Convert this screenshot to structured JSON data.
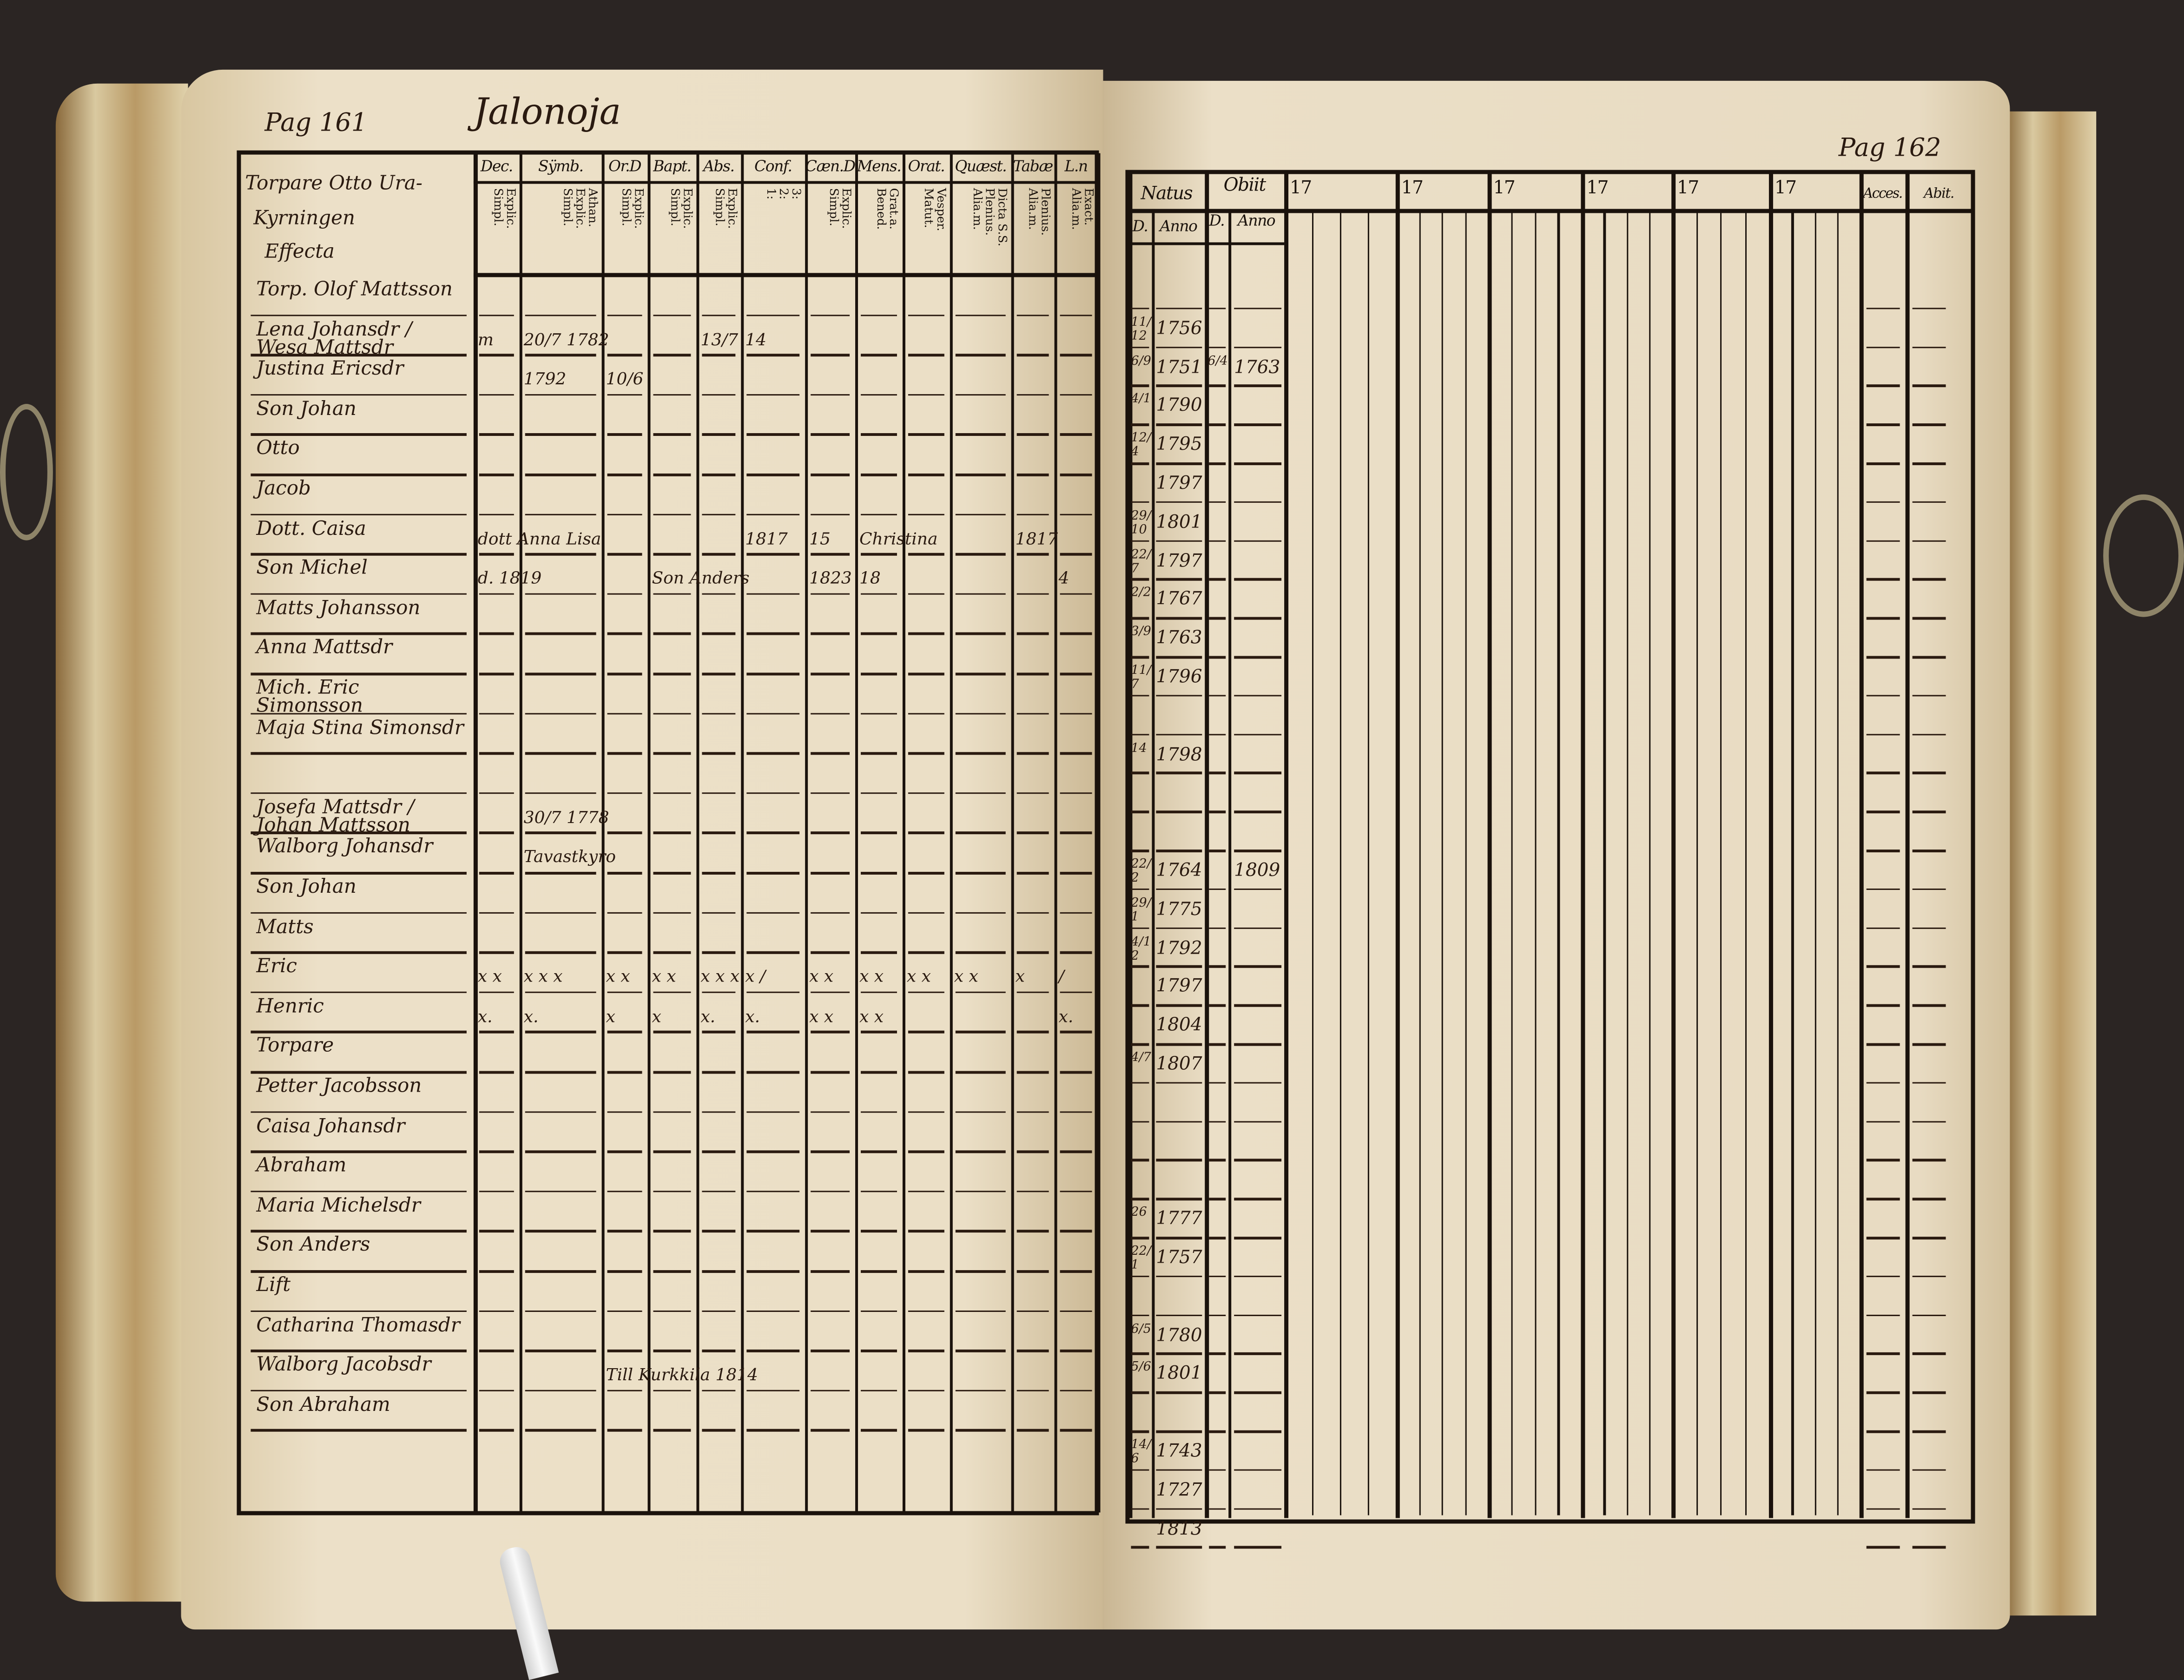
{
  "left_page": {
    "page_number": "Pag 161",
    "village": "Jalonoja",
    "heading_lines": [
      "Torpare Otto Ura-",
      "Kyrningen",
      "Effecta"
    ],
    "columns": [
      {
        "label": "Dec.",
        "sub": [
          "Explic.",
          "Simpl."
        ]
      },
      {
        "label": "Sÿmb.",
        "sub": [
          "Athan.",
          "Explic.",
          "Simpl."
        ]
      },
      {
        "label": "Or.D",
        "sub": [
          "Explic.",
          "Simpl."
        ]
      },
      {
        "label": "Bapt.",
        "sub": [
          "Explic.",
          "Simpl."
        ]
      },
      {
        "label": "Abs.",
        "sub": [
          "Explic.",
          "Simpl."
        ]
      },
      {
        "label": "Conf.",
        "sub": [
          "3:",
          "2:",
          "1:"
        ]
      },
      {
        "label": "Cæn.D",
        "sub": [
          "Explic.",
          "Simpl."
        ]
      },
      {
        "label": "Mens.",
        "sub": [
          "Grat.a.",
          "Bened."
        ]
      },
      {
        "label": "Orat.",
        "sub": [
          "Vesper.",
          "Matut."
        ]
      },
      {
        "label": "Quæst.",
        "sub": [
          "Dicta S.S.",
          "Plenius.",
          "Alia.m."
        ]
      },
      {
        "label": "Tabæ",
        "sub": [
          "Plenius.",
          "Alia.m."
        ]
      },
      {
        "label": "L.n",
        "sub": [
          "Exact.",
          "Alia.m."
        ]
      }
    ],
    "rows": [
      {
        "name": "Torp. Olof Mattsson",
        "entries": []
      },
      {
        "name": "Lena Johansdr / Wesa Mattsdr",
        "entries": [
          {
            "col": 0,
            "text": "m"
          },
          {
            "col": 1,
            "text": "20/7 1782"
          },
          {
            "col": 4,
            "text": "13/7"
          },
          {
            "col": 5,
            "text": "14"
          }
        ]
      },
      {
        "name": "Justina Ericsdr",
        "entries": [
          {
            "col": 1,
            "text": "1792"
          },
          {
            "col": 2,
            "text": "10/6"
          }
        ]
      },
      {
        "name": "Son Johan",
        "entries": []
      },
      {
        "name": "Otto",
        "entries": []
      },
      {
        "name": "Jacob",
        "entries": []
      },
      {
        "name": "Dott. Caisa",
        "entries": [
          {
            "col": 0,
            "text": "dott Anna Lisa"
          },
          {
            "col": 5,
            "text": "1817"
          },
          {
            "col": 6,
            "text": "15"
          },
          {
            "col": 7,
            "text": "Christina"
          },
          {
            "col": 10,
            "text": "1817"
          }
        ]
      },
      {
        "name": "Son Michel",
        "entries": [
          {
            "col": 0,
            "text": "d. 1819"
          },
          {
            "col": 3,
            "text": "Son Anders"
          },
          {
            "col": 6,
            "text": "1823"
          },
          {
            "col": 7,
            "text": "18"
          },
          {
            "col": 11,
            "text": "4"
          }
        ]
      },
      {
        "name": "Matts Johansson",
        "entries": []
      },
      {
        "name": "Anna Mattsdr",
        "entries": []
      },
      {
        "name": "Mich. Eric Simonsson",
        "entries": []
      },
      {
        "name": "Maja Stina Simonsdr",
        "entries": []
      },
      {
        "name": "",
        "entries": []
      },
      {
        "name": "Josefa Mattsdr / Johan Mattsson",
        "entries": [
          {
            "col": 1,
            "text": "30/7 1778"
          }
        ]
      },
      {
        "name": "Walborg Johansdr",
        "entries": [
          {
            "col": 1,
            "text": "Tavastkyro"
          }
        ]
      },
      {
        "name": "Son Johan",
        "entries": []
      },
      {
        "name": "Matts",
        "entries": []
      },
      {
        "name": "Eric",
        "entries": [
          {
            "col": 0,
            "text": "x x"
          },
          {
            "col": 1,
            "text": "x x x"
          },
          {
            "col": 2,
            "text": "x x"
          },
          {
            "col": 3,
            "text": "x x"
          },
          {
            "col": 4,
            "text": "x x x"
          },
          {
            "col": 5,
            "text": "x /"
          },
          {
            "col": 6,
            "text": "x x"
          },
          {
            "col": 7,
            "text": "x x"
          },
          {
            "col": 8,
            "text": "x x"
          },
          {
            "col": 9,
            "text": "x x"
          },
          {
            "col": 10,
            "text": "x"
          },
          {
            "col": 11,
            "text": "/"
          }
        ]
      },
      {
        "name": "Henric",
        "entries": [
          {
            "col": 0,
            "text": "x."
          },
          {
            "col": 1,
            "text": "x."
          },
          {
            "col": 2,
            "text": "x"
          },
          {
            "col": 3,
            "text": "x"
          },
          {
            "col": 4,
            "text": "x."
          },
          {
            "col": 5,
            "text": "x."
          },
          {
            "col": 6,
            "text": "x x"
          },
          {
            "col": 7,
            "text": "x x"
          },
          {
            "col": 11,
            "text": "x."
          }
        ]
      },
      {
        "name": "Torpare",
        "entries": []
      },
      {
        "name": "Petter Jacobsson",
        "entries": []
      },
      {
        "name": "Caisa Johansdr",
        "entries": []
      },
      {
        "name": "Abraham",
        "entries": []
      },
      {
        "name": "Maria Michelsdr",
        "entries": []
      },
      {
        "name": "Son Anders",
        "entries": []
      },
      {
        "name": "Lift",
        "entries": []
      },
      {
        "name": "Catharina Thomasdr",
        "entries": []
      },
      {
        "name": "Walborg Jacobsdr",
        "entries": [
          {
            "col": 2,
            "text": "Till Kurkkila 1814"
          }
        ]
      },
      {
        "name": "Son Abraham",
        "entries": []
      }
    ]
  },
  "right_page": {
    "page_number": "Pag 162",
    "headers": {
      "natus": "Natus",
      "obiit": "Obiit",
      "day": "D.",
      "anno": "Anno",
      "year_groups": [
        "17",
        "17",
        "17",
        "17",
        "17",
        "17"
      ],
      "accessit": "Acces.",
      "abiit": "Abit."
    },
    "rows": [
      {
        "natus_d": "",
        "natus_anno": "",
        "obiit_d": "",
        "obiit_anno": ""
      },
      {
        "natus_d": "11/12",
        "natus_anno": "1756",
        "obiit_d": "",
        "obiit_anno": ""
      },
      {
        "natus_d": "6/9",
        "natus_anno": "1751",
        "obiit_d": "6/4",
        "obiit_anno": "1763"
      },
      {
        "natus_d": "4/1",
        "natus_anno": "1790",
        "obiit_d": "",
        "obiit_anno": ""
      },
      {
        "natus_d": "12/4",
        "natus_anno": "1795",
        "obiit_d": "",
        "obiit_anno": ""
      },
      {
        "natus_d": "",
        "natus_anno": "1797",
        "obiit_d": "",
        "obiit_anno": ""
      },
      {
        "natus_d": "29/10",
        "natus_anno": "1801",
        "obiit_d": "",
        "obiit_anno": ""
      },
      {
        "natus_d": "22/7",
        "natus_anno": "1797",
        "obiit_d": "",
        "obiit_anno": ""
      },
      {
        "natus_d": "2/2",
        "natus_anno": "1767",
        "obiit_d": "",
        "obiit_anno": ""
      },
      {
        "natus_d": "3/9",
        "natus_anno": "1763",
        "obiit_d": "",
        "obiit_anno": ""
      },
      {
        "natus_d": "11/7",
        "natus_anno": "1796",
        "obiit_d": "",
        "obiit_anno": ""
      },
      {
        "natus_d": "",
        "natus_anno": "",
        "obiit_d": "",
        "obiit_anno": ""
      },
      {
        "natus_d": "14",
        "natus_anno": "1798",
        "obiit_d": "",
        "obiit_anno": ""
      },
      {
        "natus_d": "",
        "natus_anno": "",
        "obiit_d": "",
        "obiit_anno": ""
      },
      {
        "natus_d": "",
        "natus_anno": "",
        "obiit_d": "",
        "obiit_anno": ""
      },
      {
        "natus_d": "22/2",
        "natus_anno": "1764",
        "obiit_d": "",
        "obiit_anno": "1809"
      },
      {
        "natus_d": "29/1",
        "natus_anno": "1775",
        "obiit_d": "",
        "obiit_anno": ""
      },
      {
        "natus_d": "4/12",
        "natus_anno": "1792",
        "obiit_d": "",
        "obiit_anno": ""
      },
      {
        "natus_d": "",
        "natus_anno": "1797",
        "obiit_d": "",
        "obiit_anno": ""
      },
      {
        "natus_d": "",
        "natus_anno": "1804",
        "obiit_d": "",
        "obiit_anno": ""
      },
      {
        "natus_d": "4/7",
        "natus_anno": "1807",
        "obiit_d": "",
        "obiit_anno": ""
      },
      {
        "natus_d": "",
        "natus_anno": "",
        "obiit_d": "",
        "obiit_anno": ""
      },
      {
        "natus_d": "",
        "natus_anno": "",
        "obiit_d": "",
        "obiit_anno": ""
      },
      {
        "natus_d": "",
        "natus_anno": "",
        "obiit_d": "",
        "obiit_anno": ""
      },
      {
        "natus_d": "26",
        "natus_anno": "1777",
        "obiit_d": "",
        "obiit_anno": ""
      },
      {
        "natus_d": "22/1",
        "natus_anno": "1757",
        "obiit_d": "",
        "obiit_anno": ""
      },
      {
        "natus_d": "",
        "natus_anno": "",
        "obiit_d": "",
        "obiit_anno": ""
      },
      {
        "natus_d": "6/5",
        "natus_anno": "1780",
        "obiit_d": "",
        "obiit_anno": ""
      },
      {
        "natus_d": "5/6",
        "natus_anno": "1801",
        "obiit_d": "",
        "obiit_anno": ""
      },
      {
        "natus_d": "",
        "natus_anno": "",
        "obiit_d": "",
        "obiit_anno": ""
      },
      {
        "natus_d": "14/6",
        "natus_anno": "1743",
        "obiit_d": "",
        "obiit_anno": ""
      },
      {
        "natus_d": "",
        "natus_anno": "1727",
        "obiit_d": "",
        "obiit_anno": ""
      },
      {
        "natus_d": "",
        "natus_anno": "1813",
        "obiit_d": "",
        "obiit_anno": ""
      }
    ]
  },
  "colors": {
    "background": "#2b2523",
    "paper": "#e9dcc3",
    "ink": "#1a120c",
    "handwriting": "#2a1a10"
  }
}
